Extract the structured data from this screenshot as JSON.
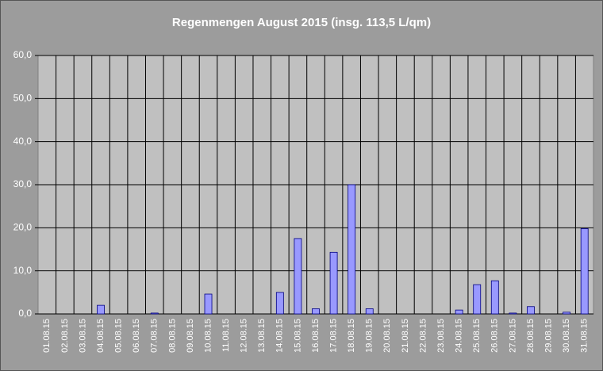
{
  "chart_data": {
    "type": "bar",
    "title": "Regenmengen August 2015 (insg. 113,5 L/qm)",
    "categories": [
      "01.08.15",
      "02.08.15",
      "03.08.15",
      "04.08.15",
      "05.08.15",
      "06.08.15",
      "07.08.15",
      "08.08.15",
      "09.08.15",
      "10.08.15",
      "11.08.15",
      "12.08.15",
      "13.08.15",
      "14.08.15",
      "15.08.15",
      "16.08.15",
      "17.08.15",
      "18.08.15",
      "19.08.15",
      "20.08.15",
      "21.08.15",
      "22.08.15",
      "23.08.15",
      "24.08.15",
      "25.08.15",
      "26.08.15",
      "27.08.15",
      "28.08.15",
      "29.08.15",
      "30.08.15",
      "31.08.15"
    ],
    "values": [
      0,
      0,
      0,
      2.0,
      0,
      0,
      0.2,
      0,
      0,
      4.6,
      0,
      0,
      0,
      5.0,
      17.5,
      1.2,
      14.3,
      30.0,
      1.2,
      0,
      0,
      0,
      0,
      0.9,
      6.8,
      7.7,
      0.2,
      1.7,
      0,
      0.4,
      19.8
    ],
    "color": "#9999ff",
    "ylim": [
      0,
      60
    ],
    "yticks": [
      {
        "value": 0,
        "label": "0,0"
      },
      {
        "value": 10,
        "label": "10,0"
      },
      {
        "value": 20,
        "label": "20,0"
      },
      {
        "value": 30,
        "label": "30,0"
      },
      {
        "value": 40,
        "label": "40,0"
      },
      {
        "value": 50,
        "label": "50,0"
      },
      {
        "value": 60,
        "label": "60,0"
      }
    ],
    "grid": true
  }
}
